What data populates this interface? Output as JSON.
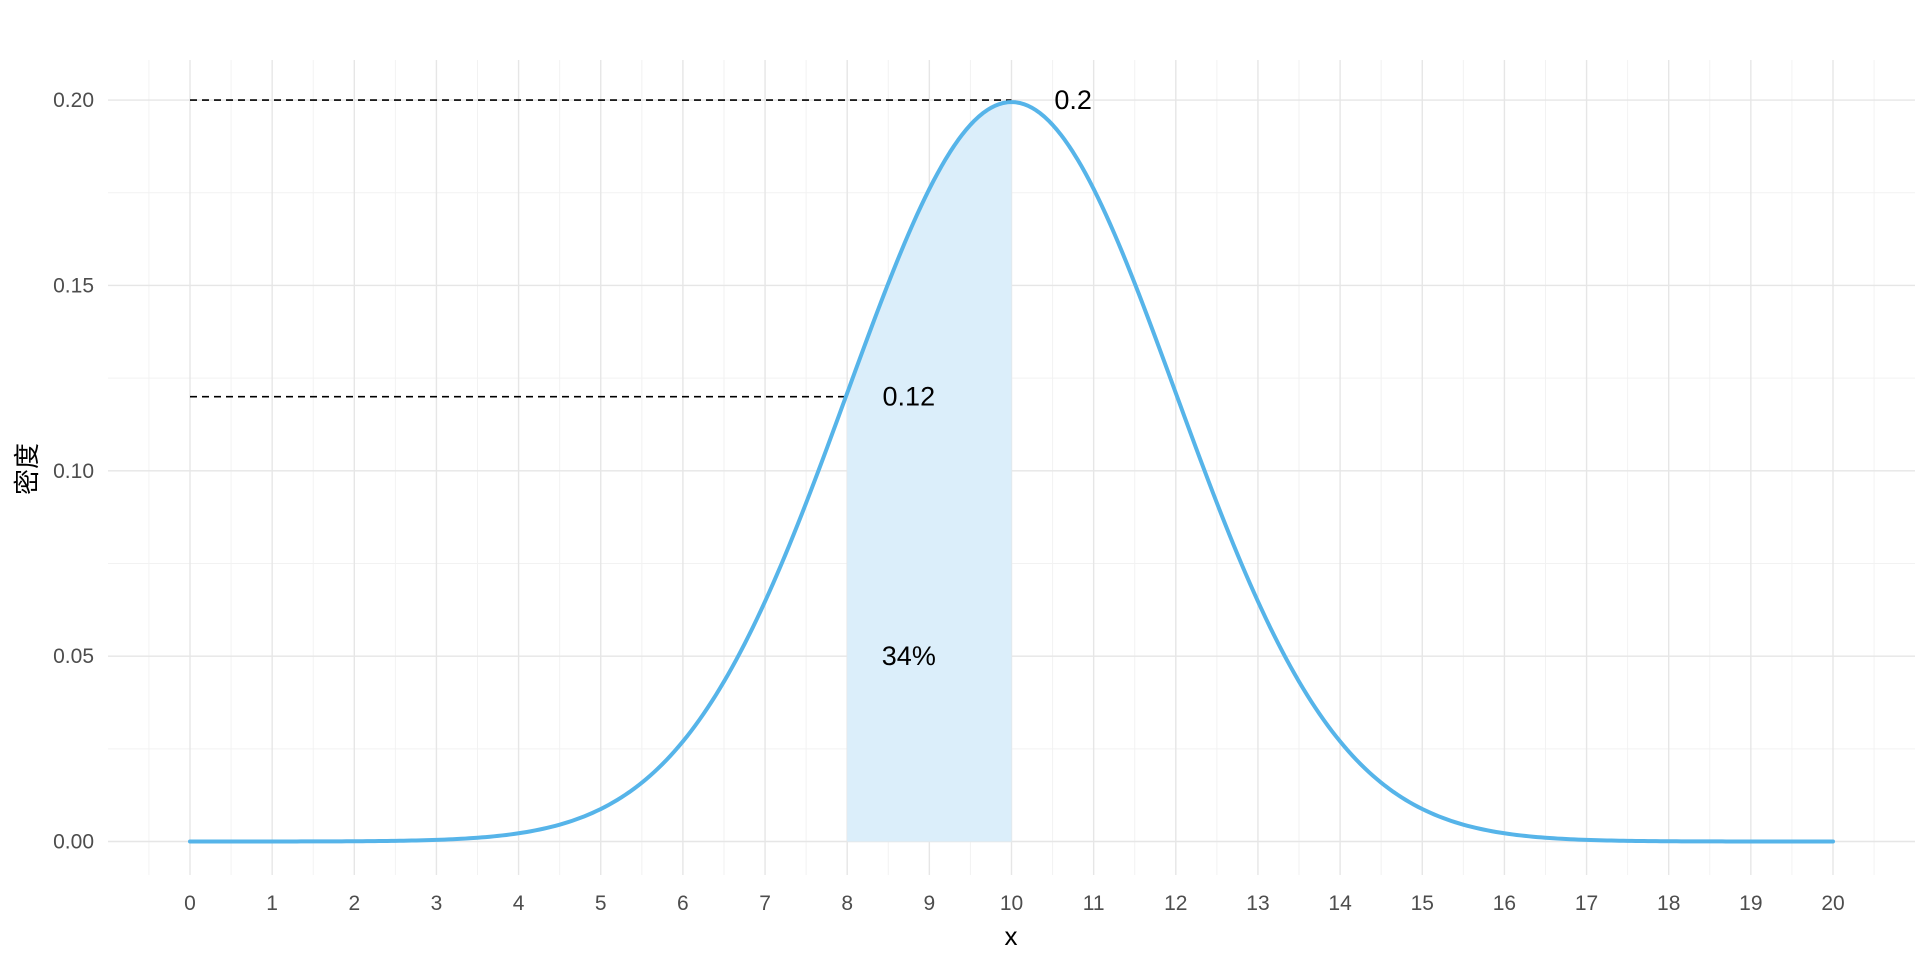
{
  "chart_data": {
    "type": "area",
    "title": "",
    "xlabel": "x",
    "ylabel": "密度",
    "xlim": [
      -1,
      21
    ],
    "ylim": [
      -0.008,
      0.21
    ],
    "x_ticks": [
      "0",
      "1",
      "2",
      "3",
      "4",
      "5",
      "6",
      "7",
      "8",
      "9",
      "10",
      "11",
      "12",
      "13",
      "14",
      "15",
      "16",
      "17",
      "18",
      "19",
      "20"
    ],
    "y_ticks": [
      "0.00",
      "0.05",
      "0.10",
      "0.15",
      "0.20"
    ],
    "grid": true,
    "series": [
      {
        "distribution": "normal",
        "mean": 10,
        "sd": 2,
        "x_range": [
          0,
          20
        ],
        "color": "#56b4e9"
      }
    ],
    "shaded_region": {
      "x_from": 8,
      "x_to": 10,
      "color": "#dbeefa"
    },
    "reference_lines": [
      {
        "y": 0.2,
        "x_from": 0,
        "x_to": 10
      },
      {
        "y": 0.12,
        "x_from": 0,
        "x_to": 8
      }
    ],
    "annotations": [
      {
        "text": "0.2",
        "x": 10.75,
        "y": 0.2
      },
      {
        "text": "0.12",
        "x": 8.75,
        "y": 0.12
      },
      {
        "text": "34%",
        "x": 8.75,
        "y": 0.05
      }
    ]
  }
}
